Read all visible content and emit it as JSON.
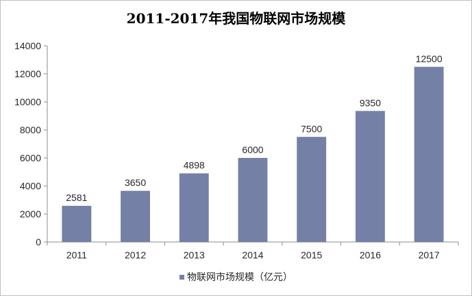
{
  "chart_data": {
    "type": "bar",
    "title": "2011-2017年我国物联网市场规模",
    "categories": [
      "2011",
      "2012",
      "2013",
      "2014",
      "2015",
      "2016",
      "2017"
    ],
    "series": [
      {
        "name": "物联网市场规模（亿元）",
        "values": [
          2581,
          3650,
          4898,
          6000,
          7500,
          9350,
          12500
        ],
        "color": "#7480A5"
      }
    ],
    "yticks": [
      "0",
      "2000",
      "4000",
      "6000",
      "8000",
      "10000",
      "12000",
      "14000"
    ],
    "ylim": [
      0,
      14000
    ],
    "legend": "bottom",
    "grid": false
  }
}
